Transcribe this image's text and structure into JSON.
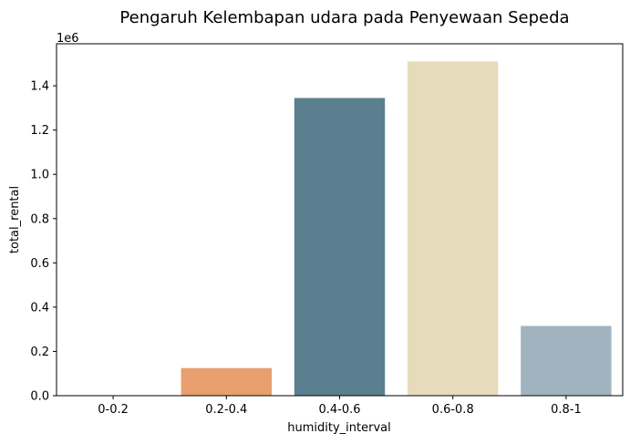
{
  "chart_data": {
    "type": "bar",
    "title": "Pengaruh Kelembapan udara pada Penyewaan Sepeda",
    "xlabel": "humidity_interval",
    "ylabel": "total_rental",
    "offset_label": "1e6",
    "categories": [
      "0-0.2",
      "0.2-0.4",
      "0.4-0.6",
      "0.6-0.8",
      "0.8-1"
    ],
    "values": [
      0,
      125000,
      1345000,
      1510000,
      315000
    ],
    "colors": [
      "#ffffff",
      "#e8a06e",
      "#5a7f8f",
      "#e6dcbc",
      "#a1b3bf"
    ],
    "ylim": [
      0,
      1590000
    ],
    "ytick_values": [
      0,
      200000,
      400000,
      600000,
      800000,
      1000000,
      1200000,
      1400000
    ],
    "ytick_labels": [
      "0.0",
      "0.2",
      "0.4",
      "0.6",
      "0.8",
      "1.0",
      "1.2",
      "1.4"
    ],
    "grid": false,
    "legend": "none"
  }
}
